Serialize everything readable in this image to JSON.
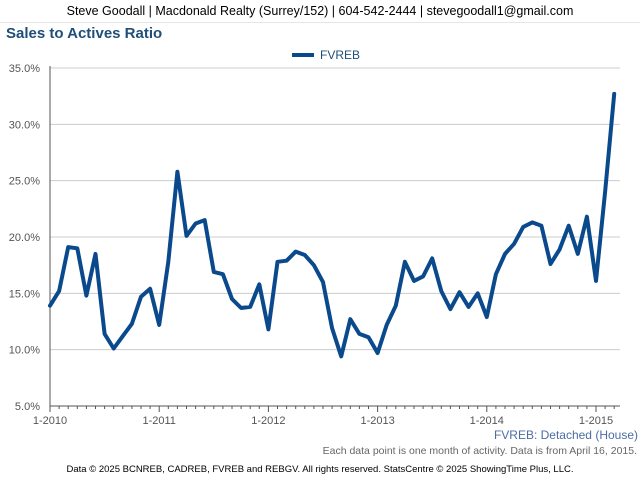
{
  "header": {
    "contact": "Steve Goodall | Macdonald Realty (Surrey/152) | 604-542-2444 | stevegoodall1@gmail.com"
  },
  "chart_data": {
    "type": "line",
    "title": "Sales to Actives Ratio",
    "xlabel": "",
    "ylabel": "",
    "ylim": [
      5.0,
      35.0
    ],
    "y_ticks": [
      "5.0%",
      "10.0%",
      "15.0%",
      "20.0%",
      "25.0%",
      "30.0%",
      "35.0%"
    ],
    "x_ticks": [
      "1-2010",
      "1-2011",
      "1-2012",
      "1-2013",
      "1-2014",
      "1-2015"
    ],
    "grid": true,
    "legend": "top-center",
    "colors": {
      "series": "#0a4a8c",
      "grid": "#cccccc",
      "axis": "#555555",
      "title": "#1f4e79"
    },
    "series": [
      {
        "name": "FVREB",
        "x": [
          "1-2010",
          "2-2010",
          "3-2010",
          "4-2010",
          "5-2010",
          "6-2010",
          "7-2010",
          "8-2010",
          "9-2010",
          "10-2010",
          "11-2010",
          "12-2010",
          "1-2011",
          "2-2011",
          "3-2011",
          "4-2011",
          "5-2011",
          "6-2011",
          "7-2011",
          "8-2011",
          "9-2011",
          "10-2011",
          "11-2011",
          "12-2011",
          "1-2012",
          "2-2012",
          "3-2012",
          "4-2012",
          "5-2012",
          "6-2012",
          "7-2012",
          "8-2012",
          "9-2012",
          "10-2012",
          "11-2012",
          "12-2012",
          "1-2013",
          "2-2013",
          "3-2013",
          "4-2013",
          "5-2013",
          "6-2013",
          "7-2013",
          "8-2013",
          "9-2013",
          "10-2013",
          "11-2013",
          "12-2013",
          "1-2014",
          "2-2014",
          "3-2014",
          "4-2014",
          "5-2014",
          "6-2014",
          "7-2014",
          "8-2014",
          "9-2014",
          "10-2014",
          "11-2014",
          "12-2014",
          "1-2015",
          "2-2015",
          "3-2015"
        ],
        "values": [
          13.9,
          15.2,
          19.1,
          19.0,
          14.8,
          18.5,
          11.4,
          10.1,
          11.2,
          12.3,
          14.7,
          15.4,
          12.2,
          17.8,
          25.8,
          20.1,
          21.2,
          21.5,
          16.9,
          16.7,
          14.5,
          13.7,
          13.8,
          15.8,
          11.8,
          17.8,
          17.9,
          18.7,
          18.4,
          17.5,
          16.0,
          11.9,
          9.4,
          12.7,
          11.4,
          11.1,
          9.7,
          12.2,
          13.9,
          17.8,
          16.1,
          16.5,
          18.1,
          15.2,
          13.6,
          15.1,
          13.8,
          15.0,
          12.9,
          16.7,
          18.5,
          19.4,
          20.9,
          21.3,
          21.0,
          17.6,
          18.9,
          21.0,
          18.5,
          21.8,
          16.1,
          24.0,
          32.7
        ]
      }
    ]
  },
  "subtitle": "FVREB: Detached (House)",
  "note": "Each data point is one month of activity. Data is from April 16, 2015.",
  "footer": "Data © 2025 BCNREB, CADREB, FVREB and REBGV. All rights reserved. StatsCentre © 2025 ShowingTime Plus, LLC."
}
